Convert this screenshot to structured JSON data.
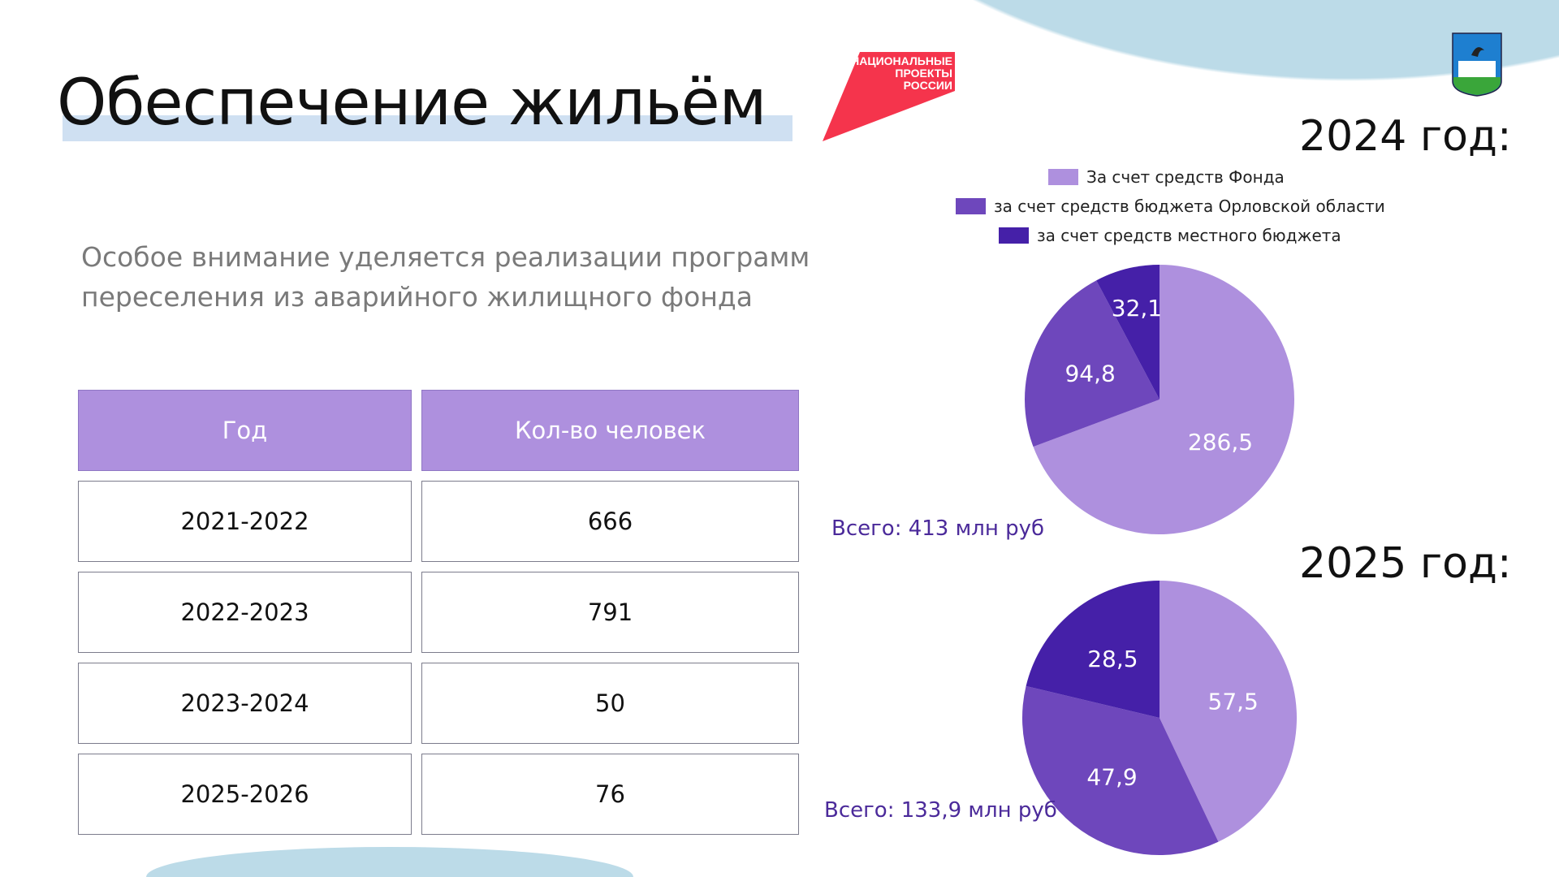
{
  "header": {
    "title": "Обеспечение жильём",
    "logo_text": "НАЦИОНАЛЬНЫЕ ПРОЕКТЫ РОССИИ"
  },
  "subtitle": "Особое внимание уделяется реализации программ переселения из аварийного жилищного фонда",
  "table": {
    "headers": [
      "Год",
      "Кол-во человек"
    ],
    "rows": [
      [
        "2021-2022",
        "666"
      ],
      [
        "2022-2023",
        "791"
      ],
      [
        "2023-2024",
        "50"
      ],
      [
        "2025-2026",
        "76"
      ]
    ]
  },
  "colors": {
    "fund": "#ae90de",
    "region": "#6e47bc",
    "local": "#4520a8",
    "accent": "#4b2a9a",
    "logo_red": "#f5344c"
  },
  "chart_data": [
    {
      "type": "pie",
      "title": "2024 год:",
      "total_label": "Всего: 413 млн руб",
      "legend": [
        "За счет средств Фонда",
        "за счет средств бюджета Орловской области",
        "за счет средств местного бюджета"
      ],
      "slices": [
        {
          "name": "За счет средств Фонда",
          "value": 286.5,
          "label": "286,5"
        },
        {
          "name": "за счет средств бюджета Орловской области",
          "value": 94.8,
          "label": "94,8"
        },
        {
          "name": "за счет средств местного бюджета",
          "value": 32.1,
          "label": "32,1"
        }
      ]
    },
    {
      "type": "pie",
      "title": "2025 год:",
      "total_label": "Всего: 133,9 млн руб",
      "slices": [
        {
          "name": "За счет средств Фонда",
          "value": 57.5,
          "label": "57,5"
        },
        {
          "name": "за счет средств бюджета Орловской области",
          "value": 47.9,
          "label": "47,9"
        },
        {
          "name": "за счет средств местного бюджета",
          "value": 28.5,
          "label": "28,5"
        }
      ]
    }
  ]
}
